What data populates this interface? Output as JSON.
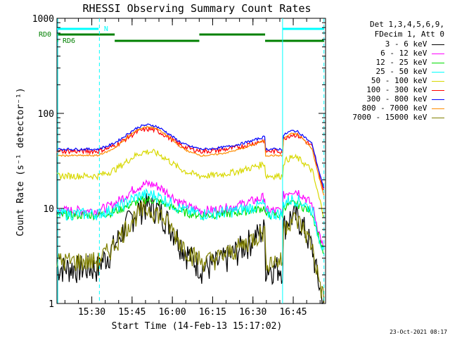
{
  "chart_data": {
    "type": "line",
    "title": "RHESSI Observing Summary Count Rates",
    "xlabel": "Start Time (14-Feb-13 15:17:02)",
    "ylabel": "Count Rate (s⁻¹ detector⁻¹)",
    "yscale": "log",
    "ylim": [
      1,
      1000
    ],
    "xlim_minutes": [
      0,
      100
    ],
    "x_ticks": [
      "15:30",
      "15:45",
      "16:00",
      "16:15",
      "16:30",
      "16:45"
    ],
    "y_ticks": [
      "1",
      "10",
      "100",
      "1000"
    ],
    "legend_header": [
      "Det 1,3,4,5,6,9,",
      "FDecim 1, Att 0"
    ],
    "series": [
      {
        "name": "3 - 6 keV",
        "color": "#000000"
      },
      {
        "name": "6 - 12 keV",
        "color": "#ff00ff"
      },
      {
        "name": "12 - 25 keV",
        "color": "#00dd00"
      },
      {
        "name": "25 - 50 keV",
        "color": "#00ffff"
      },
      {
        "name": "50 - 100 keV",
        "color": "#d8d800"
      },
      {
        "name": "100 - 300 keV",
        "color": "#ff0000"
      },
      {
        "name": "300 - 800 keV",
        "color": "#0000ff"
      },
      {
        "name": "800 - 7000 keV",
        "color": "#ff8c00"
      },
      {
        "name": "7000 - 15000 keV",
        "color": "#808000"
      }
    ],
    "flags": [
      {
        "label": "N",
        "color": "#00ffff"
      },
      {
        "label": "RD0",
        "color": "#008000"
      },
      {
        "label": "RD6",
        "color": "#008000"
      }
    ]
  },
  "timestamp": "23-Oct-2021 08:17"
}
